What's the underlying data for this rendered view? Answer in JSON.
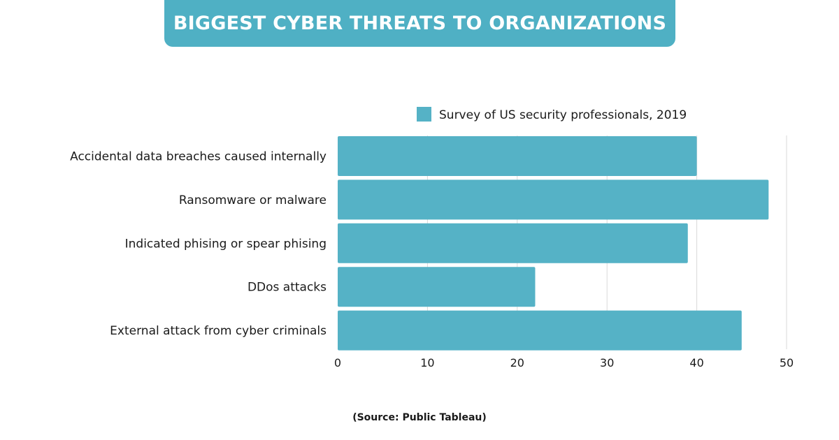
{
  "title": "BIGGEST CYBER THREATS TO ORGANIZATIONS",
  "source": "(Source: Public Tableau)",
  "colors": {
    "bar": "#55b2c6",
    "banner": "#4fb0c4",
    "grid": "#d9d9d9"
  },
  "chart_data": {
    "type": "bar",
    "orientation": "horizontal",
    "title": "BIGGEST CYBER THREATS TO ORGANIZATIONS",
    "categories": [
      "Accidental data breaches caused internally",
      "Ransomware or malware",
      "Indicated phising or spear phising",
      "DDos attacks",
      "External attack from cyber criminals"
    ],
    "series": [
      {
        "name": "Survey of US security professionals, 2019",
        "values": [
          40,
          48,
          39,
          22,
          45
        ]
      }
    ],
    "xlim": [
      0,
      50
    ],
    "xticks": [
      "0",
      "10",
      "20",
      "30",
      "40",
      "50"
    ],
    "xlabel": "",
    "ylabel": "",
    "grid": true,
    "legend": "top-right"
  }
}
